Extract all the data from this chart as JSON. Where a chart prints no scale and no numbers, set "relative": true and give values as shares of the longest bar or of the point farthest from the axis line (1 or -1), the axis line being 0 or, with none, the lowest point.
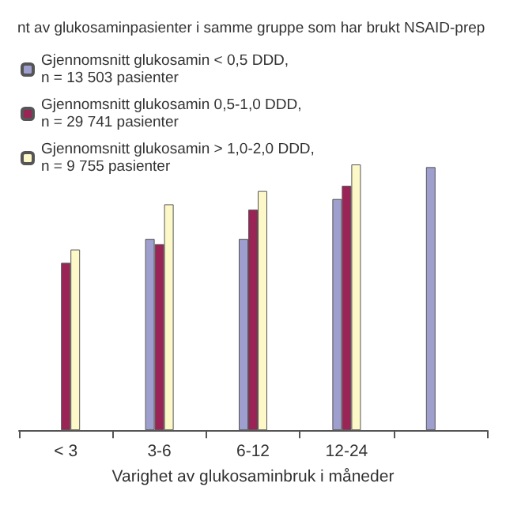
{
  "chart_data": {
    "type": "bar",
    "title": "nt av glukosaminpasienter i samme gruppe som har brukt NSAID-prep",
    "xlabel": "Varighet av glukosaminbruk i måneder",
    "categories": [
      "< 3",
      "3-6",
      "6-12",
      "12-24",
      null
    ],
    "relative": true,
    "legend": "top left",
    "series": [
      {
        "name": "Gjennomsnitt glukosamin < 0,5 DDD,\nn = 13 503 pasienter",
        "color": "#9f9fcf",
        "values": [
          null,
          0.72,
          0.72,
          0.87,
          0.99
        ]
      },
      {
        "name": "Gjennomsnitt glukosamin 0,5-1,0 DDD,\nn = 29 741 pasienter",
        "color": "#9b2457",
        "values": [
          0.63,
          0.7,
          0.83,
          0.92,
          null
        ]
      },
      {
        "name": "Gjennomsnitt glukosamin > 1,0-2,0 DDD,\nn = 9 755 pasienter",
        "color": "#fdf8c8",
        "values": [
          0.68,
          0.85,
          0.9,
          1,
          null
        ]
      }
    ]
  }
}
